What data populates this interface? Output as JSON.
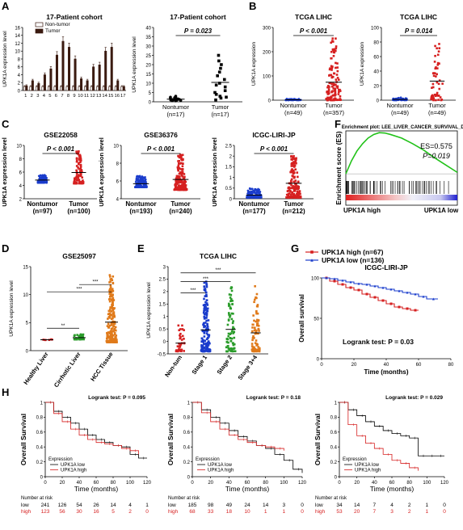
{
  "panel_labels": [
    "A",
    "B",
    "C",
    "D",
    "E",
    "F",
    "G",
    "H"
  ],
  "chart_data": [
    {
      "id": "A1",
      "type": "bar",
      "title": "17-Patient cohort",
      "ylabel": "UPK1A expression level",
      "ylim": [
        0,
        16
      ],
      "yticks": [
        0,
        2,
        4,
        6,
        8,
        10,
        12,
        14,
        16
      ],
      "categories": [
        "1",
        "2",
        "3",
        "4",
        "5",
        "6",
        "7",
        "8",
        "9",
        "10",
        "11",
        "12",
        "13",
        "14",
        "15",
        "16",
        "17"
      ],
      "legend": [
        "Non-tumor",
        "Tumor"
      ],
      "series": [
        {
          "name": "Non-tumor",
          "color": "#ffffff",
          "values": [
            1,
            1,
            1,
            1,
            1,
            1,
            1,
            1,
            1,
            1,
            1,
            1,
            1,
            1,
            1,
            1,
            1
          ]
        },
        {
          "name": "Tumor",
          "color": "#3a1a10",
          "values": [
            1.2,
            2.5,
            1.8,
            4,
            5.5,
            9,
            12.5,
            11,
            8,
            3,
            2.5,
            6,
            6.5,
            10,
            11,
            2.5,
            1
          ]
        }
      ]
    },
    {
      "id": "A2",
      "type": "scatter",
      "title": "17-Patient cohort",
      "ylabel": "UPK1A expression level",
      "ylim": [
        0,
        40
      ],
      "yticks": [
        0,
        5,
        10,
        15,
        20,
        25,
        30,
        35,
        40
      ],
      "groups": [
        {
          "label": "Nontumor",
          "n": "(n=17)",
          "color": "#000000",
          "marker": "circle",
          "values": [
            0.5,
            0.8,
            1,
            1.2,
            1.5,
            1.8,
            2,
            0.7,
            1.1,
            2.2,
            0.9,
            1.3,
            1.6,
            2.5,
            3,
            0.6,
            1.4
          ]
        },
        {
          "label": "Tumor",
          "n": "(n=17)",
          "color": "#000000",
          "marker": "square",
          "values": [
            1,
            2,
            3,
            4,
            5,
            6,
            8,
            9,
            10,
            12,
            14,
            16,
            18,
            20,
            22,
            25,
            2.5
          ]
        }
      ],
      "p_text": "P = 0.023"
    },
    {
      "id": "B1",
      "type": "scatter",
      "title": "TCGA LIHC",
      "ylabel": "UPK1A expression",
      "ylim": [
        0,
        300
      ],
      "yticks": [
        0,
        100,
        200,
        300
      ],
      "groups": [
        {
          "label": "Nontumor",
          "n": "(n=49)",
          "color": "#1a3ccc",
          "marker": "circle",
          "count": 49,
          "spread": [
            0,
            6
          ]
        },
        {
          "label": "Tumor",
          "n": "(n=357)",
          "color": "#d62020",
          "marker": "square",
          "count": 120,
          "spread": [
            0,
            260
          ]
        }
      ],
      "p_text": "P < 0.001"
    },
    {
      "id": "B2",
      "type": "scatter",
      "title": "TCGA LIHC",
      "ylabel": "UPK1A expression",
      "ylim": [
        0,
        100
      ],
      "yticks": [
        0,
        20,
        40,
        60,
        80,
        100
      ],
      "groups": [
        {
          "label": "Nontumor",
          "n": "(n=49)",
          "color": "#1a3ccc",
          "marker": "circle",
          "count": 49,
          "spread": [
            0,
            4
          ]
        },
        {
          "label": "Tumor",
          "n": "(n=49)",
          "color": "#d62020",
          "marker": "square",
          "count": 49,
          "spread": [
            0,
            80
          ]
        }
      ],
      "p_text": "P = 0.014"
    },
    {
      "id": "C1",
      "type": "scatter",
      "title": "GSE22058",
      "ylabel": "UPK1A expression level",
      "ylim": [
        2,
        10
      ],
      "yticks": [
        2,
        4,
        6,
        8,
        10
      ],
      "groups": [
        {
          "label": "Nontumor",
          "n": "(n=97)",
          "color": "#1a3ccc",
          "marker": "circle",
          "count": 97,
          "spread": [
            4.4,
            5.6
          ]
        },
        {
          "label": "Tumor",
          "n": "(n=100)",
          "color": "#d62020",
          "marker": "square",
          "count": 100,
          "spread": [
            4.3,
            9.2
          ]
        }
      ],
      "p_text": "P < 0.001"
    },
    {
      "id": "C2",
      "type": "scatter",
      "title": "GSE36376",
      "ylabel": "UPK1A expression level",
      "ylim": [
        4,
        10
      ],
      "yticks": [
        4,
        6,
        8,
        10
      ],
      "groups": [
        {
          "label": "Nontumor",
          "n": "(n=193)",
          "color": "#1a3ccc",
          "marker": "circle",
          "count": 150,
          "spread": [
            5.3,
            6.6
          ]
        },
        {
          "label": "Tumor",
          "n": "(n=240)",
          "color": "#d62020",
          "marker": "square",
          "count": 170,
          "spread": [
            5.0,
            9.0
          ]
        }
      ],
      "p_text": "P < 0.001"
    },
    {
      "id": "C3",
      "type": "scatter",
      "title": "ICGC-LIRI-JP",
      "ylabel": "UPK1A expression level",
      "ylim": [
        0,
        2.5
      ],
      "yticks": [
        0,
        0.5,
        1.0,
        1.5,
        2.0,
        2.5
      ],
      "groups": [
        {
          "label": "Nontumor",
          "n": "(n=177)",
          "color": "#1a3ccc",
          "marker": "circle",
          "count": 140,
          "spread": [
            0.05,
            0.5
          ]
        },
        {
          "label": "Tumor",
          "n": "(n=212)",
          "color": "#d62020",
          "marker": "square",
          "count": 160,
          "spread": [
            0.05,
            2.0
          ]
        }
      ],
      "p_text": "P < 0.001"
    },
    {
      "id": "D",
      "type": "scatter",
      "title": "GSE25097",
      "ylabel": "UPK1A expression level",
      "ylim": [
        0,
        15
      ],
      "yticks": [
        0,
        5,
        10,
        15
      ],
      "groups": [
        {
          "label": "Healthy Liver",
          "color": "#d62020",
          "marker": "square",
          "count": 6,
          "spread": [
            1.9,
            2.1
          ]
        },
        {
          "label": "Cirrhotic Liver",
          "color": "#2a9c2a",
          "marker": "square",
          "count": 40,
          "spread": [
            2,
            3
          ]
        },
        {
          "label": "HCC Tissue",
          "color": "#e07a1a",
          "marker": "square",
          "count": 200,
          "spread": [
            1.5,
            13.5
          ]
        }
      ],
      "sig": [
        {
          "from": 0,
          "to": 1,
          "text": "**",
          "y": 4
        },
        {
          "from": 0,
          "to": 2,
          "text": "***",
          "y": 10.5
        },
        {
          "from": 1,
          "to": 2,
          "text": "***",
          "y": 11.8
        }
      ]
    },
    {
      "id": "E",
      "type": "scatter",
      "title": "TCGA LIHC",
      "ylabel": "UPK1A expression level",
      "ylim": [
        -0.5,
        3
      ],
      "yticks": [
        -0.5,
        0.0,
        0.5,
        1.0,
        1.5,
        2.0,
        2.5,
        3.0
      ],
      "groups": [
        {
          "label": "Non-tum",
          "color": "#d62020",
          "marker": "square",
          "count": 40,
          "spread": [
            -0.4,
            0.7
          ]
        },
        {
          "label": "Stage 1",
          "color": "#1a3ccc",
          "marker": "square",
          "count": 160,
          "spread": [
            -0.4,
            2.4
          ]
        },
        {
          "label": "Stage 2",
          "color": "#2a9c2a",
          "marker": "square",
          "count": 80,
          "spread": [
            -0.4,
            2.2
          ]
        },
        {
          "label": "Stage 3+4",
          "color": "#e07a1a",
          "marker": "square",
          "count": 80,
          "spread": [
            -0.4,
            2.3
          ]
        }
      ],
      "sig": [
        {
          "from": 0,
          "to": 1,
          "text": "***",
          "y": 1.95
        },
        {
          "from": 0,
          "to": 2,
          "text": "***",
          "y": 2.4
        },
        {
          "from": 0,
          "to": 3,
          "text": "***",
          "y": 2.75
        }
      ]
    },
    {
      "id": "F",
      "type": "line",
      "title": "Enrichment plot: LEE_LIVER_CANCER_SURVIVAL_DN",
      "ylabel": "Enrichment score (ES)",
      "ylim": [
        -0.1,
        0.6
      ],
      "yticks": [
        0.0,
        0.1,
        0.2,
        0.3,
        0.4,
        0.5,
        0.6
      ],
      "es_text": "ES=0.575",
      "p_text": "P=0.019",
      "left_label": "UPK1A high",
      "right_label": "UPK1A low",
      "curve": [
        [
          0,
          0
        ],
        [
          0.05,
          0.18
        ],
        [
          0.1,
          0.32
        ],
        [
          0.15,
          0.42
        ],
        [
          0.2,
          0.5
        ],
        [
          0.25,
          0.55
        ],
        [
          0.3,
          0.575
        ],
        [
          0.35,
          0.57
        ],
        [
          0.4,
          0.55
        ],
        [
          0.5,
          0.5
        ],
        [
          0.6,
          0.42
        ],
        [
          0.7,
          0.33
        ],
        [
          0.8,
          0.22
        ],
        [
          0.9,
          0.12
        ],
        [
          1,
          0.02
        ]
      ]
    },
    {
      "id": "G",
      "type": "line",
      "title": "ICGC-LIRI-JP",
      "xlabel": "Time (months)",
      "ylabel": "Overall survival",
      "xlim": [
        0,
        80
      ],
      "ylim": [
        0,
        100
      ],
      "xticks": [
        0,
        20,
        40,
        60,
        80
      ],
      "yticks": [
        0,
        50,
        100
      ],
      "logrank": "Logrank test: P = 0.03",
      "series": [
        {
          "name": "UPK1A high (n=67)",
          "color": "#d62020",
          "marker": "square",
          "x": [
            0,
            5,
            10,
            15,
            20,
            25,
            30,
            35,
            40,
            45,
            50,
            55,
            60
          ],
          "y": [
            100,
            96,
            92,
            88,
            85,
            80,
            76,
            72,
            68,
            64,
            62,
            60,
            60
          ]
        },
        {
          "name": "UPK1A low (n=136)",
          "color": "#1a3ccc",
          "marker": "triangle",
          "x": [
            0,
            5,
            10,
            15,
            20,
            25,
            30,
            35,
            40,
            45,
            50,
            55,
            60,
            65,
            72
          ],
          "y": [
            100,
            99,
            97,
            95,
            93,
            92,
            90,
            88,
            86,
            84,
            82,
            80,
            77,
            74,
            74
          ]
        }
      ]
    },
    {
      "id": "H1",
      "type": "line",
      "xlabel": "Time (months)",
      "ylabel": "Overall Survival",
      "xlim": [
        0,
        120
      ],
      "ylim": [
        0,
        1
      ],
      "xticks": [
        0,
        20,
        40,
        60,
        80,
        100,
        120
      ],
      "yticks": [
        0.0,
        0.2,
        0.4,
        0.6,
        0.8,
        1.0
      ],
      "logrank": "Logrank test: P = 0.095",
      "legend_title": "Expression",
      "series": [
        {
          "name": "UPK1A low",
          "color": "#000000",
          "x": [
            0,
            10,
            20,
            30,
            40,
            50,
            60,
            70,
            80,
            90,
            100,
            110,
            120
          ],
          "y": [
            1,
            0.88,
            0.8,
            0.72,
            0.64,
            0.56,
            0.5,
            0.46,
            0.42,
            0.4,
            0.3,
            0.25,
            0.25
          ]
        },
        {
          "name": "UPK1A high",
          "color": "#d62020",
          "x": [
            0,
            10,
            20,
            30,
            40,
            50,
            60,
            70,
            80,
            90,
            100,
            110
          ],
          "y": [
            1,
            0.85,
            0.74,
            0.64,
            0.56,
            0.5,
            0.46,
            0.44,
            0.42,
            0.38,
            0.35,
            0.3
          ]
        }
      ],
      "risk_title": "Number at risk",
      "risk": [
        {
          "label": "low",
          "color": "#000000",
          "values": [
            "241",
            "126",
            "54",
            "26",
            "14",
            "4",
            "1"
          ]
        },
        {
          "label": "high",
          "color": "#d62020",
          "values": [
            "123",
            "56",
            "30",
            "16",
            "5",
            "2",
            "0"
          ]
        }
      ]
    },
    {
      "id": "H2",
      "type": "line",
      "xlabel": "Time (months)",
      "ylabel": "Overall Survival",
      "xlim": [
        0,
        120
      ],
      "ylim": [
        0,
        1
      ],
      "xticks": [
        0,
        20,
        40,
        60,
        80,
        100,
        120
      ],
      "yticks": [
        0.0,
        0.2,
        0.4,
        0.6,
        0.8,
        1.0
      ],
      "logrank": "Logrank test: P = 0.18",
      "legend_title": "Expression",
      "series": [
        {
          "name": "UPK1A low",
          "color": "#000000",
          "x": [
            0,
            10,
            20,
            30,
            40,
            50,
            60,
            70,
            80,
            90,
            100,
            110,
            120
          ],
          "y": [
            1,
            0.9,
            0.8,
            0.72,
            0.62,
            0.54,
            0.48,
            0.42,
            0.38,
            0.3,
            0.22,
            0.1,
            0.05
          ]
        },
        {
          "name": "UPK1A high",
          "color": "#d62020",
          "x": [
            0,
            10,
            20,
            30,
            40,
            50,
            60,
            70,
            80,
            90,
            100
          ],
          "y": [
            1,
            0.86,
            0.74,
            0.64,
            0.56,
            0.5,
            0.46,
            0.42,
            0.4,
            0.38,
            0.35
          ]
        }
      ],
      "risk_title": "Number at risk",
      "risk": [
        {
          "label": "low",
          "color": "#000000",
          "values": [
            "185",
            "98",
            "49",
            "24",
            "14",
            "3",
            "0"
          ]
        },
        {
          "label": "high",
          "color": "#d62020",
          "values": [
            "68",
            "33",
            "18",
            "10",
            "1",
            "1",
            "0"
          ]
        }
      ]
    },
    {
      "id": "H3",
      "type": "line",
      "xlabel": "Time (months)",
      "ylabel": "Overall Survival",
      "xlim": [
        0,
        120
      ],
      "ylim": [
        0,
        1
      ],
      "xticks": [
        0,
        20,
        40,
        60,
        80,
        100,
        120
      ],
      "yticks": [
        0.0,
        0.2,
        0.4,
        0.6,
        0.8,
        1.0
      ],
      "logrank": "Logrank test: P = 0.029",
      "legend_title": "Expression",
      "series": [
        {
          "name": "UPK1A low",
          "color": "#000000",
          "x": [
            0,
            10,
            20,
            30,
            40,
            50,
            60,
            70,
            80,
            90,
            100,
            110,
            120
          ],
          "y": [
            1,
            0.9,
            0.82,
            0.74,
            0.68,
            0.62,
            0.58,
            0.55,
            0.52,
            0.28,
            0.28,
            0.28,
            0.28
          ]
        },
        {
          "name": "UPK1A high",
          "color": "#d62020",
          "x": [
            0,
            10,
            20,
            30,
            40,
            50,
            60,
            70,
            80,
            90
          ],
          "y": [
            1,
            0.7,
            0.55,
            0.45,
            0.38,
            0.3,
            0.22,
            0.18,
            0.12,
            0.08
          ]
        }
      ],
      "risk_title": "Number at risk",
      "risk": [
        {
          "label": "low",
          "color": "#000000",
          "values": [
            "34",
            "14",
            "7",
            "4",
            "2",
            "1",
            "0"
          ]
        },
        {
          "label": "high",
          "color": "#d62020",
          "values": [
            "53",
            "20",
            "7",
            "3",
            "2",
            "1",
            "0"
          ]
        }
      ]
    }
  ]
}
